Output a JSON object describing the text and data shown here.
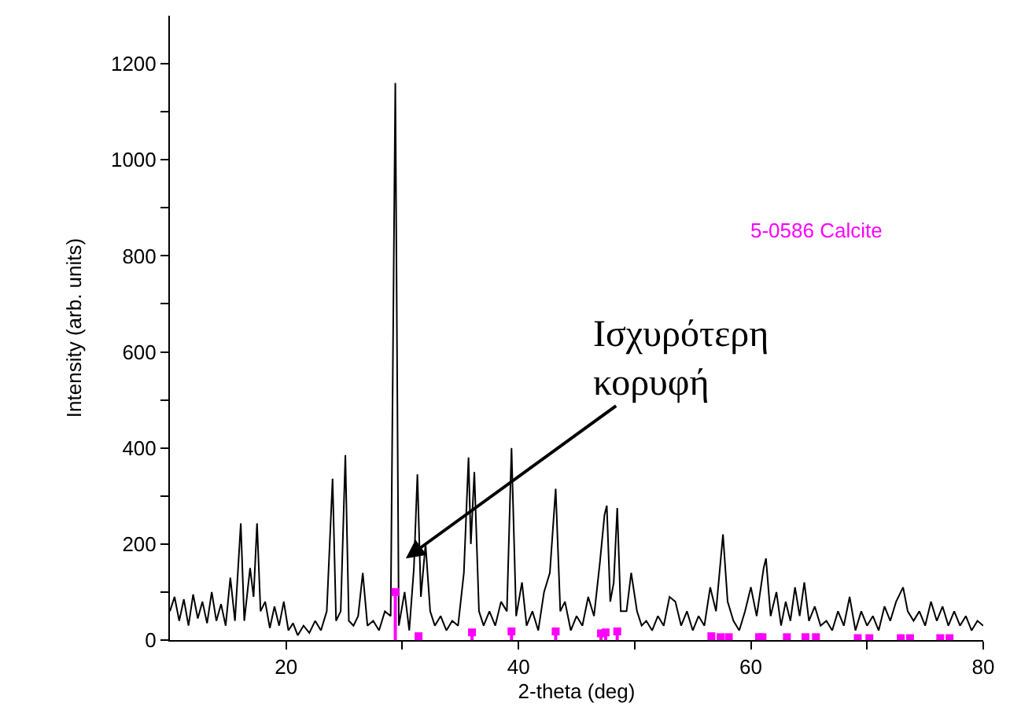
{
  "chart_data": {
    "type": "line",
    "xlabel": "2-theta (deg)",
    "ylabel": "Intensity (arb. units)",
    "xlim": [
      10,
      80
    ],
    "ylim": [
      0,
      1300
    ],
    "xticks": [
      20,
      {
        "value": 30,
        "label": null
      },
      40,
      {
        "value": 50,
        "label": null
      },
      60,
      {
        "value": 70,
        "label": null
      },
      80
    ],
    "yticks": [
      0,
      {
        "value": 100,
        "label": null
      },
      200,
      {
        "value": 300,
        "label": null
      },
      400,
      {
        "value": 500,
        "label": null
      },
      600,
      {
        "value": 700,
        "label": null
      },
      800,
      {
        "value": 900,
        "label": null
      },
      1000,
      {
        "value": 1100,
        "label": null
      },
      1200
    ],
    "grid": false,
    "legend": false,
    "marker": "none",
    "line_style": "solid",
    "series": [
      {
        "color": "#000000",
        "x": [
          10,
          10.4,
          10.8,
          11.2,
          11.6,
          12,
          12.4,
          12.8,
          13.2,
          13.6,
          14,
          14.4,
          14.8,
          15.2,
          15.6,
          16.1,
          16.4,
          16.9,
          17.2,
          17.5,
          17.8,
          18.2,
          18.6,
          19,
          19.4,
          19.8,
          20.2,
          20.6,
          21,
          21.5,
          22,
          22.5,
          23,
          23.5,
          24,
          24.3,
          24.7,
          25.1,
          25.4,
          25.8,
          26.2,
          26.6,
          27,
          27.5,
          28,
          28.5,
          29,
          29.4,
          29.7,
          30.2,
          30.6,
          31,
          31.3,
          31.6,
          32,
          32.4,
          32.8,
          33.3,
          33.8,
          34.3,
          34.8,
          35.3,
          35.7,
          35.9,
          36.2,
          36.6,
          37,
          37.5,
          38,
          38.5,
          39,
          39.4,
          39.8,
          40.3,
          40.7,
          41.2,
          41.7,
          42.2,
          42.7,
          43.2,
          43.6,
          44,
          44.5,
          45,
          45.5,
          46,
          46.5,
          47,
          47.4,
          47.6,
          47.9,
          48.2,
          48.5,
          48.8,
          49.3,
          49.7,
          50.2,
          50.6,
          51,
          51.5,
          52,
          52.5,
          53,
          53.5,
          54,
          54.5,
          55,
          55.5,
          56,
          56.5,
          57,
          57.6,
          58,
          58.5,
          59,
          59.5,
          60,
          60.5,
          61.1,
          61.3,
          61.7,
          62.2,
          62.6,
          63,
          63.4,
          63.8,
          64.2,
          64.6,
          65,
          65.5,
          66,
          66.5,
          67,
          67.5,
          68,
          68.5,
          69,
          69.5,
          70,
          70.5,
          71,
          71.5,
          72,
          72.5,
          73.1,
          73.5,
          74,
          74.5,
          75,
          75.5,
          76,
          76.5,
          77,
          77.5,
          78,
          78.5,
          79,
          79.5,
          80
        ],
        "values": [
          60,
          90,
          40,
          85,
          30,
          95,
          45,
          80,
          35,
          100,
          40,
          75,
          30,
          130,
          40,
          243,
          40,
          150,
          90,
          243,
          60,
          80,
          25,
          70,
          30,
          80,
          20,
          35,
          10,
          30,
          15,
          40,
          20,
          60,
          336,
          40,
          60,
          385,
          40,
          30,
          50,
          140,
          30,
          40,
          20,
          60,
          50,
          1160,
          30,
          100,
          20,
          150,
          345,
          90,
          200,
          60,
          30,
          50,
          20,
          40,
          30,
          140,
          380,
          200,
          350,
          60,
          30,
          60,
          30,
          80,
          60,
          400,
          50,
          120,
          30,
          60,
          20,
          100,
          140,
          315,
          60,
          80,
          20,
          50,
          30,
          90,
          50,
          160,
          260,
          280,
          80,
          120,
          275,
          60,
          60,
          140,
          60,
          30,
          40,
          20,
          50,
          30,
          90,
          80,
          30,
          60,
          20,
          50,
          30,
          110,
          60,
          220,
          80,
          40,
          20,
          60,
          110,
          50,
          150,
          170,
          50,
          100,
          30,
          80,
          40,
          110,
          50,
          120,
          40,
          70,
          30,
          40,
          20,
          60,
          30,
          90,
          20,
          60,
          30,
          50,
          20,
          70,
          40,
          80,
          110,
          60,
          40,
          60,
          30,
          80,
          40,
          70,
          30,
          60,
          30,
          50,
          20,
          40,
          30
        ]
      },
      {
        "type": "lollipop",
        "name": "5-0586 Calcite",
        "color": "#ff00ff",
        "marker": "square",
        "x": [
          29.4,
          31.4,
          36.0,
          39.4,
          43.2,
          47.1,
          47.5,
          48.5,
          56.6,
          57.4,
          58.1,
          60.7,
          61.0,
          63.1,
          64.7,
          65.6,
          69.2,
          70.2,
          72.9,
          73.7,
          76.3,
          77.1
        ],
        "values": [
          100,
          8,
          16,
          18,
          18,
          14,
          16,
          18,
          8,
          6,
          6,
          6,
          6,
          6,
          6,
          6,
          4,
          4,
          4,
          4,
          4,
          4
        ]
      }
    ],
    "annotations": [
      {
        "text": "Ισχυρότερη κορυφή",
        "x": 30.3,
        "y": 170
      }
    ]
  }
}
